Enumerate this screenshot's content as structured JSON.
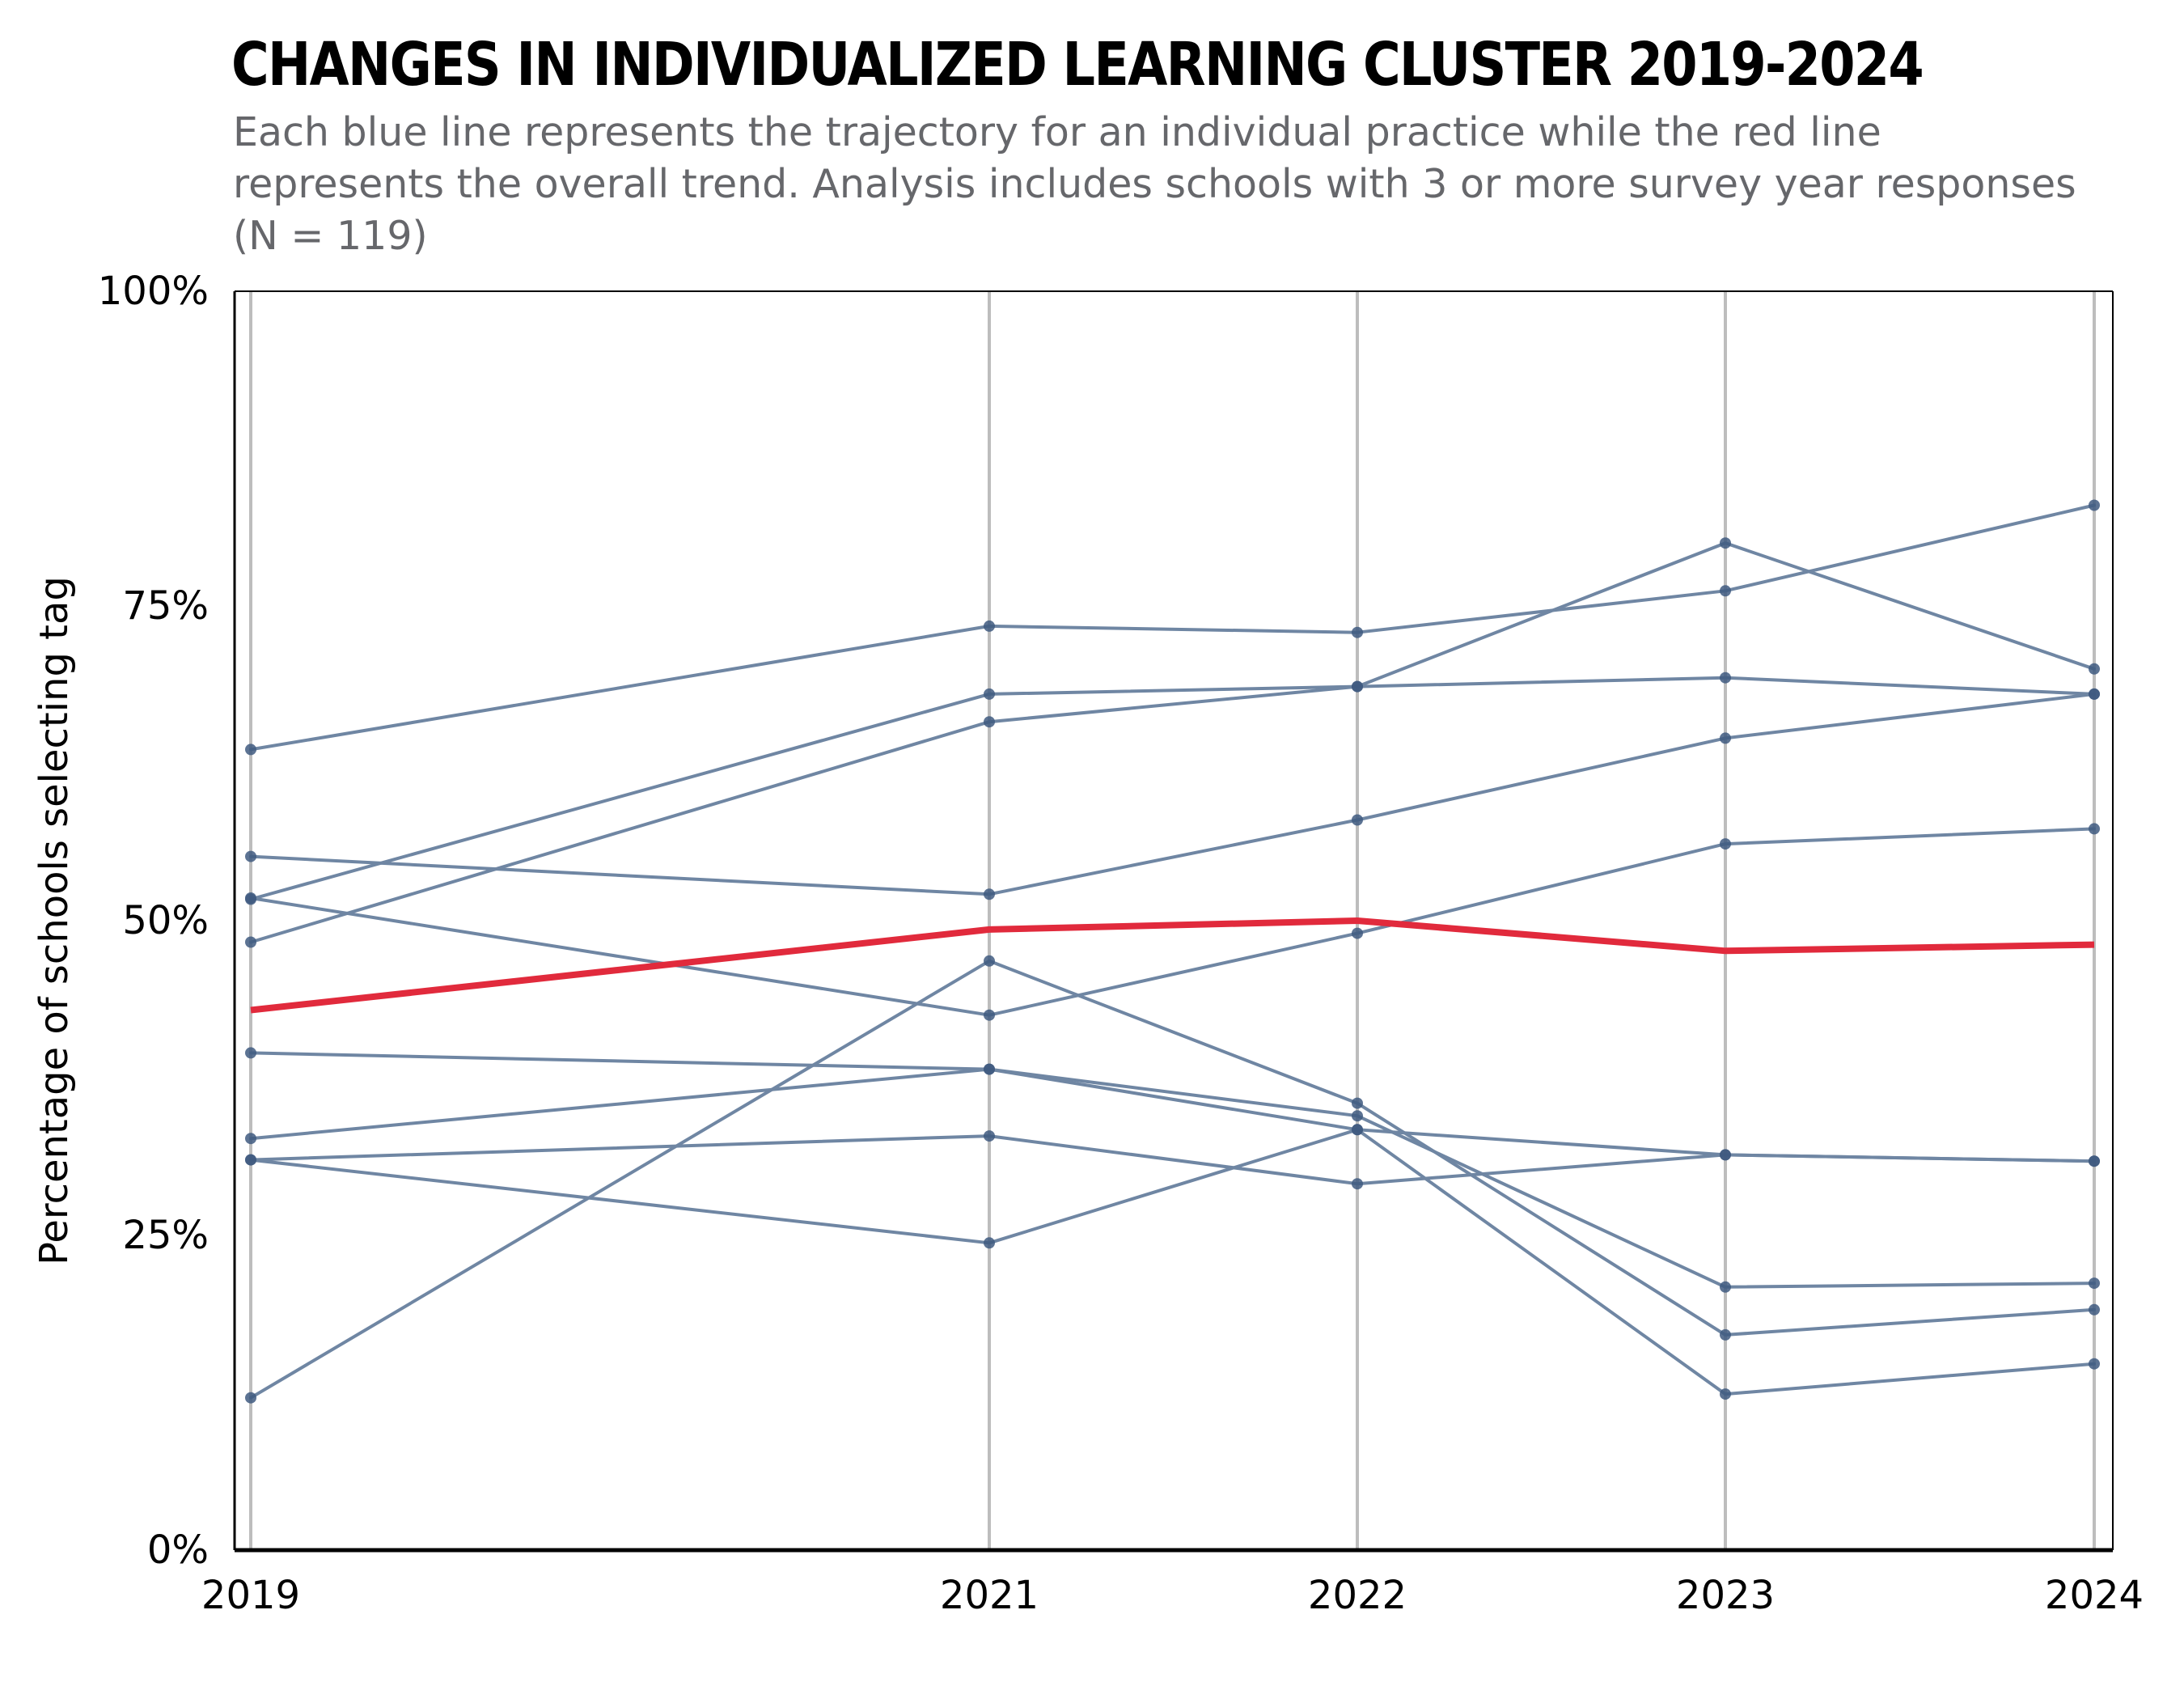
{
  "chart_data": {
    "type": "line",
    "title": "CHANGES IN INDIVIDUALIZED LEARNING CLUSTER 2019-2024",
    "subtitle": "Each blue line represents the trajectory for an individual practice while the red line represents the overall trend. Analysis includes schools with 3 or more survey year responses (N = 119)",
    "xlabel": "",
    "ylabel": "Percentage of schools selecting tag",
    "x": [
      2019,
      2021,
      2022,
      2023,
      2024
    ],
    "x_tick_labels": [
      "2019",
      "2021",
      "2022",
      "2023",
      "2024"
    ],
    "xlim": [
      2019,
      2024
    ],
    "ylim": [
      0,
      100
    ],
    "y_ticks": [
      0,
      25,
      50,
      75,
      100
    ],
    "y_tick_labels": [
      "0%",
      "25%",
      "50%",
      "75%",
      "100%"
    ],
    "grid": "vertical lines at each year",
    "legend": "none",
    "colors": {
      "practice_line": "#6f86a3",
      "practice_marker": "#3f5a80",
      "overall_line": "#e12a3c",
      "grid": "#bdbdbd",
      "axis": "#000000"
    },
    "series": [
      {
        "role": "practice",
        "values": [
          63.6,
          73.4,
          72.9,
          76.2,
          83.0
        ]
      },
      {
        "role": "practice",
        "values": [
          55.1,
          52.1,
          58.0,
          64.5,
          68.0
        ]
      },
      {
        "role": "practice",
        "values": [
          51.7,
          68.0,
          68.6,
          69.3,
          68.0
        ]
      },
      {
        "role": "practice",
        "values": [
          48.3,
          65.8,
          68.6,
          80.0,
          70.0
        ]
      },
      {
        "role": "practice",
        "values": [
          51.8,
          42.5,
          49.0,
          56.1,
          57.3
        ]
      },
      {
        "role": "practice",
        "values": [
          39.5,
          38.2,
          34.5,
          20.9,
          21.2
        ]
      },
      {
        "role": "practice",
        "values": [
          32.7,
          38.2,
          33.4,
          31.4,
          30.9
        ]
      },
      {
        "role": "practice",
        "values": [
          31.0,
          32.9,
          29.1,
          31.4,
          30.9
        ]
      },
      {
        "role": "practice",
        "values": [
          31.0,
          24.4,
          33.4,
          12.4,
          14.8
        ]
      },
      {
        "role": "practice",
        "values": [
          12.1,
          46.8,
          35.5,
          17.1,
          19.1
        ]
      },
      {
        "role": "overall",
        "values": [
          42.9,
          49.3,
          50.0,
          47.6,
          48.1
        ]
      }
    ]
  }
}
